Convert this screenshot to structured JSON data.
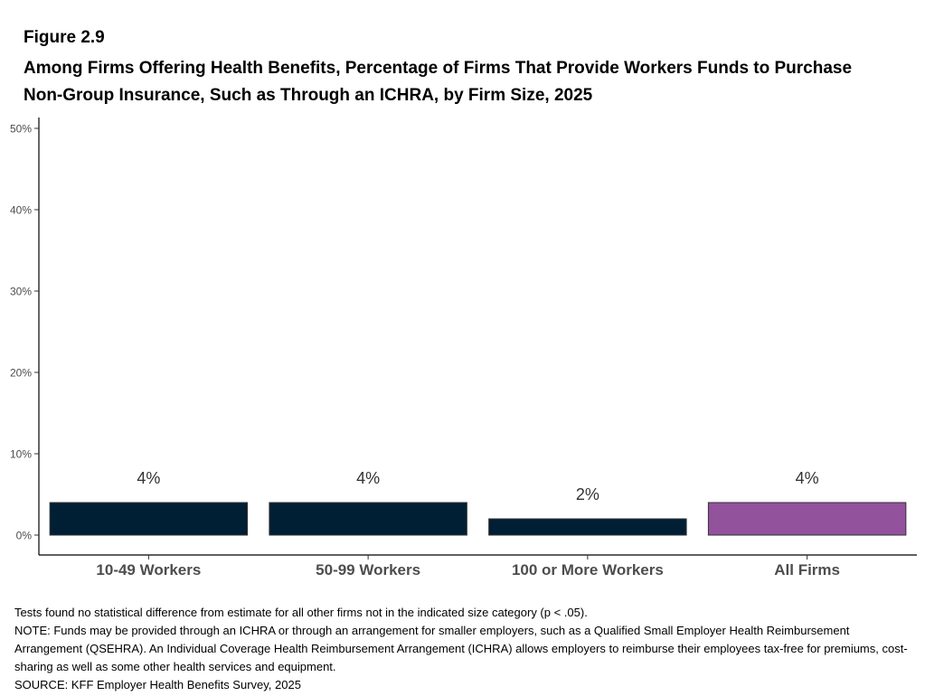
{
  "figure_label": "Figure 2.9",
  "title": "Among Firms Offering Health Benefits, Percentage of Firms That Provide Workers Funds to Purchase Non-Group Insurance, Such as Through an ICHRA, by Firm Size, 2025",
  "chart_data": {
    "type": "bar",
    "categories": [
      "10-49 Workers",
      "50-99 Workers",
      "100 or More Workers",
      "All Firms"
    ],
    "values": [
      4,
      4,
      2,
      4
    ],
    "data_labels": [
      "4%",
      "4%",
      "2%",
      "4%"
    ],
    "bar_colors": [
      "#001f35",
      "#001f35",
      "#001f35",
      "#93529c"
    ],
    "ylim": [
      0,
      50
    ],
    "yticks": [
      0,
      10,
      20,
      30,
      40,
      50
    ],
    "ytick_labels": [
      "0%",
      "10%",
      "20%",
      "30%",
      "40%",
      "50%"
    ],
    "grid": false,
    "legend": "none"
  },
  "notes": [
    "Tests found no statistical difference from estimate for all other firms not in the indicated size category (p < .05).",
    "NOTE: Funds may be provided through an ICHRA or through an arrangement for smaller employers, such as a Qualified Small Employer Health Reimbursement Arrangement (QSEHRA). An Individual Coverage Health Reimbursement Arrangement (ICHRA) allows employers to reimburse their employees tax-free for premiums, cost-sharing as well as some other health services and equipment.",
    "SOURCE: KFF Employer Health Benefits Survey, 2025"
  ]
}
